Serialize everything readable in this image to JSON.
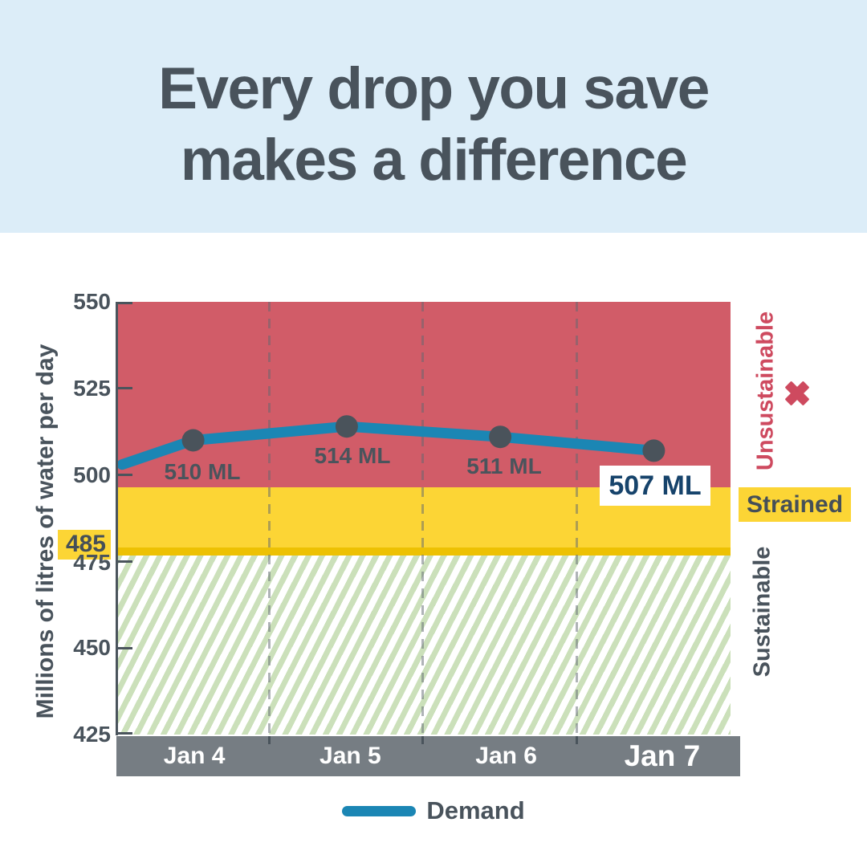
{
  "header": {
    "title_line1": "Every drop you save",
    "title_line2": "makes a difference"
  },
  "chart_data": {
    "type": "line",
    "title": "Every drop you save makes a difference",
    "x": [
      "Jan 4",
      "Jan 5",
      "Jan 6",
      "Jan 7"
    ],
    "series": [
      {
        "name": "Demand",
        "unit": "ML",
        "values": [
          510,
          514,
          511,
          507
        ]
      }
    ],
    "point_labels": [
      "510 ML",
      "514 ML",
      "511 ML",
      "507 ML"
    ],
    "line_start_value": 503,
    "ylabel": "Millions of litres of water per day",
    "ylim": [
      425,
      550
    ],
    "yticks": [
      "550",
      "525",
      "500",
      "485",
      "475",
      "450",
      "425"
    ],
    "threshold_value": "485",
    "zones": [
      {
        "label": "Unsustainable",
        "range": [
          497,
          550
        ],
        "color": "#d15c68"
      },
      {
        "label": "Strained",
        "range": [
          485,
          497
        ],
        "color": "#fcd535"
      },
      {
        "label": "Sustainable",
        "range": [
          425,
          485
        ],
        "style": "diagonal green hatch on white",
        "color": "#cbe0ba"
      }
    ],
    "grid": "vertical dashed lines between days",
    "legend_position": "bottom center",
    "legend": [
      {
        "label": "Demand",
        "color": "#1b86b4"
      }
    ]
  },
  "annotations": {
    "unsustainable": "Unsustainable",
    "strained": "Strained",
    "sustainable": "Sustainable"
  },
  "colors": {
    "header_bg": "#dcedf8",
    "heading_text": "#49535c",
    "zone_red": "#d15c68",
    "zone_yellow": "#fcd535",
    "threshold_stripe": "#edc103",
    "hatch_green": "#cbe0ba",
    "demand_line": "#1b86b4",
    "marker": "#4a535b",
    "axis_band": "#767d83",
    "red_text": "#ce4a5f",
    "navy_text": "#16436b"
  }
}
